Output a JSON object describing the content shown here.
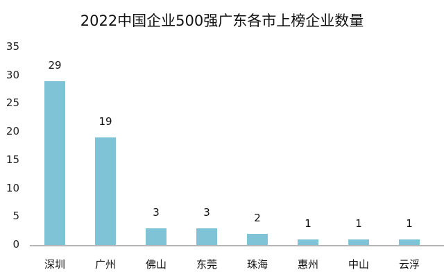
{
  "chart_data": {
    "type": "bar",
    "title": "2022中国企业500强广东各市上榜企业数量",
    "xlabel": "",
    "ylabel": "",
    "categories": [
      "深圳",
      "广州",
      "佛山",
      "东莞",
      "珠海",
      "惠州",
      "中山",
      "云浮"
    ],
    "values": [
      29,
      19,
      3,
      3,
      2,
      1,
      1,
      1
    ],
    "ylim": [
      0,
      35
    ],
    "yticks": [
      "0",
      "5",
      "10",
      "15",
      "20",
      "25",
      "30",
      "35"
    ],
    "grid": false,
    "legend": null,
    "data_labels": true,
    "bar_color": "#7fc4d6"
  }
}
